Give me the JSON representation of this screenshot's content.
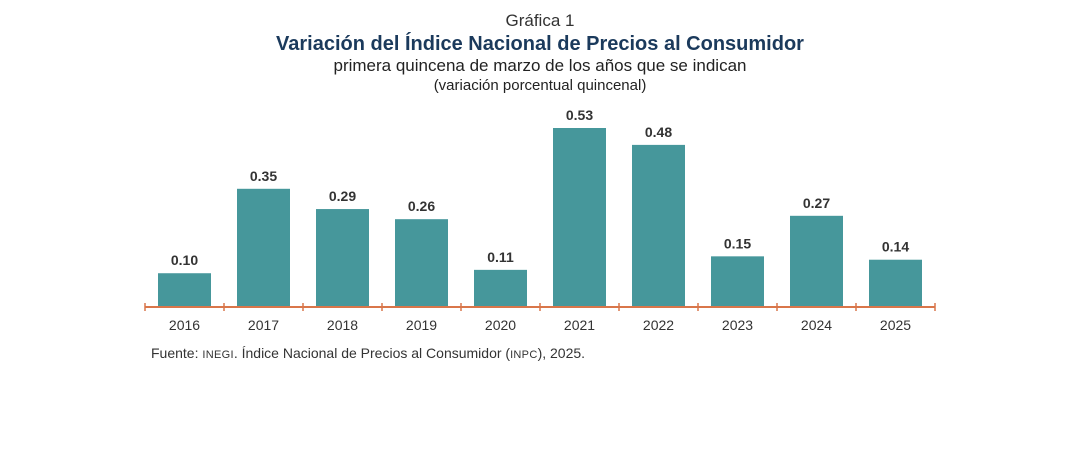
{
  "header": {
    "label": "Gráfica 1",
    "title": "Variación del Índice Nacional de Precios al Consumidor",
    "subtitle": "primera quincena de marzo de los años que se indican",
    "units": "(variación porcentual quincenal)"
  },
  "chart_data": {
    "type": "bar",
    "categories": [
      "2016",
      "2017",
      "2018",
      "2019",
      "2020",
      "2021",
      "2022",
      "2023",
      "2024",
      "2025"
    ],
    "values": [
      0.1,
      0.35,
      0.29,
      0.26,
      0.11,
      0.53,
      0.48,
      0.15,
      0.27,
      0.14
    ],
    "value_labels": [
      "0.10",
      "0.35",
      "0.29",
      "0.26",
      "0.11",
      "0.53",
      "0.48",
      "0.15",
      "0.27",
      "0.14"
    ],
    "ylim": [
      0,
      0.53
    ],
    "grid": false,
    "legend": "none",
    "bar_color": "#46979b",
    "axis_color": "#d9764a"
  },
  "footer": {
    "prefix": "Fuente: ",
    "org": "INEGI",
    "middle": ". Índice Nacional de Precios al Consumidor (",
    "abbr": "INPC",
    "suffix": "), 2025."
  }
}
